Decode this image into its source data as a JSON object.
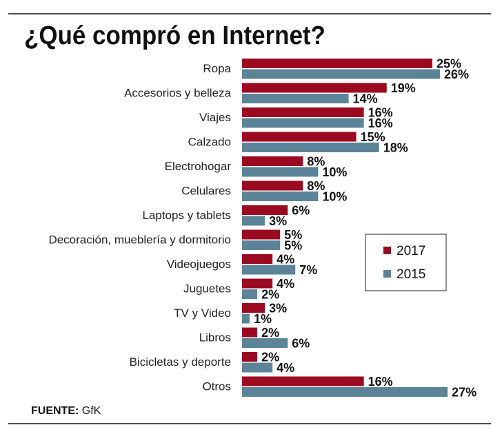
{
  "chart_data": {
    "type": "bar",
    "orientation": "horizontal",
    "title": "¿Qué compró en Internet?",
    "categories": [
      "Ropa",
      "Accesorios y belleza",
      "Viajes",
      "Calzado",
      "Electrohogar",
      "Celulares",
      "Laptops y tablets",
      "Decoración, mueblería y dormitorio",
      "Videojuegos",
      "Juguetes",
      "TV y Video",
      "Libros",
      "Bicicletas y deporte",
      "Otros"
    ],
    "series": [
      {
        "name": "2017",
        "color": "#9b0a20",
        "values": [
          25,
          19,
          16,
          15,
          8,
          8,
          6,
          5,
          4,
          4,
          3,
          2,
          2,
          16
        ]
      },
      {
        "name": "2015",
        "color": "#5b8499",
        "values": [
          26,
          14,
          16,
          18,
          10,
          10,
          3,
          5,
          7,
          2,
          1,
          6,
          4,
          27
        ]
      }
    ],
    "value_suffix": "%",
    "xlim": [
      0,
      27
    ],
    "grid": false,
    "legend_position": "right"
  },
  "source": {
    "label": "FUENTE:",
    "value": "GfK"
  }
}
